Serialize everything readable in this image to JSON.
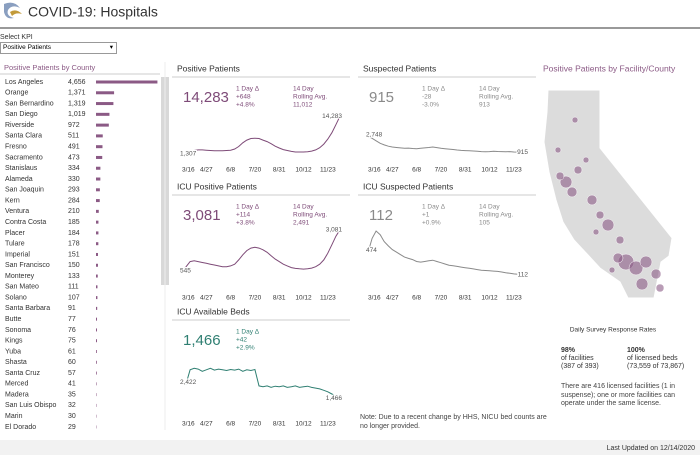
{
  "header": {
    "title": "COVID-19: Hospitals"
  },
  "kpi_select": {
    "label": "Select KPI",
    "value": "Positive Patients"
  },
  "chart_data": [
    {
      "type": "bar",
      "orientation": "horizontal",
      "title": "Positive Patients by County",
      "color": "#8b5a85",
      "xlim": [
        0,
        4700
      ],
      "categories": [
        "Los Angeles",
        "Orange",
        "San Bernardino",
        "San Diego",
        "Riverside",
        "Santa Clara",
        "Fresno",
        "Sacramento",
        "Stanislaus",
        "Alameda",
        "San Joaquin",
        "Kern",
        "Ventura",
        "Contra Costa",
        "Placer",
        "Tulare",
        "Imperial",
        "San Francisco",
        "Monterey",
        "San Mateo",
        "Solano",
        "Santa Barbara",
        "Butte",
        "Sonoma",
        "Kings",
        "Yuba",
        "Shasta",
        "Santa Cruz",
        "Merced",
        "Madera",
        "San Luis Obispo",
        "Marin",
        "El Dorado"
      ],
      "values": [
        4656,
        1371,
        1319,
        1019,
        972,
        511,
        491,
        473,
        334,
        330,
        293,
        284,
        210,
        185,
        184,
        178,
        151,
        150,
        133,
        111,
        107,
        91,
        77,
        76,
        75,
        61,
        60,
        57,
        41,
        35,
        32,
        30,
        29
      ],
      "value_labels": [
        "4,656",
        "1,371",
        "1,319",
        "1,019",
        "972",
        "511",
        "491",
        "473",
        "334",
        "330",
        "293",
        "284",
        "210",
        "185",
        "184",
        "178",
        "151",
        "150",
        "133",
        "111",
        "107",
        "91",
        "77",
        "76",
        "75",
        "61",
        "60",
        "57",
        "41",
        "35",
        "32",
        "30",
        "29"
      ]
    },
    {
      "type": "line",
      "title": "Positive Patients",
      "color": "#7e4b78",
      "ylim": [
        0,
        15000
      ],
      "kpi": {
        "value": "14,283",
        "day_label": "1 Day Δ",
        "day_change": "+648",
        "day_pct": "+4.8%",
        "avg_label_1": "14 Day",
        "avg_label_2": "Rolling Avg.",
        "avg_value": "11,012"
      },
      "categories": [
        "3/16",
        null,
        null,
        null,
        null,
        null,
        "4/27",
        null,
        null,
        null,
        null,
        null,
        "6/8",
        null,
        null,
        null,
        null,
        null,
        "7/20",
        null,
        null,
        null,
        null,
        null,
        "8/31",
        null,
        null,
        null,
        null,
        null,
        "10/12",
        null,
        null,
        null,
        null,
        null,
        "11/23",
        null,
        null,
        null
      ],
      "values": [
        1307,
        1900,
        2600,
        3100,
        3300,
        3300,
        3200,
        3100,
        3000,
        3000,
        3000,
        3100,
        3200,
        3600,
        4400,
        5600,
        6500,
        7000,
        7100,
        7000,
        6500,
        6000,
        5300,
        4500,
        3900,
        3400,
        3100,
        2800,
        2600,
        2600,
        2600,
        2700,
        2900,
        3300,
        4000,
        5200,
        6800,
        8900,
        11500,
        14283
      ],
      "value_labels": [
        "1,307",
        null,
        null,
        null,
        null,
        null,
        null,
        null,
        null,
        null,
        null,
        null,
        null,
        null,
        null,
        null,
        null,
        null,
        null,
        null,
        null,
        null,
        null,
        null,
        null,
        null,
        null,
        null,
        null,
        null,
        null,
        null,
        null,
        null,
        null,
        null,
        null,
        null,
        null,
        "14,283"
      ]
    },
    {
      "type": "line",
      "title": "Suspected Patients",
      "color": "#8a8a8a",
      "ylim": [
        0,
        5500
      ],
      "kpi": {
        "value": "915",
        "day_label": "1 Day Δ",
        "day_change": "-28",
        "day_pct": "-3.0%",
        "avg_label_1": "14 Day",
        "avg_label_2": "Rolling Avg.",
        "avg_value": "913"
      },
      "categories": [
        "3/16",
        null,
        null,
        null,
        null,
        null,
        "4/27",
        null,
        null,
        null,
        null,
        null,
        "6/8",
        null,
        null,
        null,
        null,
        null,
        "7/20",
        null,
        null,
        null,
        null,
        null,
        "8/31",
        null,
        null,
        null,
        null,
        null,
        "10/12",
        null,
        null,
        null,
        null,
        null,
        "11/23",
        null,
        null,
        null
      ],
      "values": [
        2748,
        2600,
        2300,
        2000,
        1800,
        1650,
        1550,
        1500,
        1450,
        1400,
        1420,
        1380,
        1350,
        1400,
        1450,
        1500,
        1550,
        1480,
        1400,
        1350,
        1300,
        1250,
        1200,
        1150,
        1120,
        1100,
        1080,
        1050,
        1000,
        980,
        1000,
        1050,
        1020,
        1000,
        980,
        1000,
        960,
        950,
        930,
        915
      ],
      "value_labels": [
        "2,748",
        null,
        null,
        null,
        null,
        null,
        null,
        null,
        null,
        null,
        null,
        null,
        null,
        null,
        null,
        null,
        null,
        null,
        null,
        null,
        null,
        null,
        null,
        null,
        null,
        null,
        null,
        null,
        null,
        null,
        null,
        null,
        null,
        null,
        null,
        null,
        null,
        null,
        null,
        "915"
      ]
    },
    {
      "type": "line",
      "title": "ICU Positive Patients",
      "color": "#7e4b78",
      "ylim": [
        0,
        3300
      ],
      "kpi": {
        "value": "3,081",
        "day_label": "1 Day Δ",
        "day_change": "+114",
        "day_pct": "+3.8%",
        "avg_label_1": "14 Day",
        "avg_label_2": "Rolling Avg.",
        "avg_value": "2,491"
      },
      "categories": [
        "3/16",
        null,
        null,
        null,
        null,
        null,
        "4/27",
        null,
        null,
        null,
        null,
        null,
        "6/8",
        null,
        null,
        null,
        null,
        null,
        "7/20",
        null,
        null,
        null,
        null,
        null,
        "8/31",
        null,
        null,
        null,
        null,
        null,
        "10/12",
        null,
        null,
        null,
        null,
        null,
        "11/23",
        null,
        null,
        null
      ],
      "values": [
        545,
        900,
        1200,
        1250,
        1200,
        1150,
        1100,
        1050,
        1000,
        950,
        900,
        900,
        950,
        1050,
        1300,
        1600,
        1850,
        2000,
        2050,
        2000,
        1900,
        1750,
        1550,
        1350,
        1200,
        1050,
        950,
        850,
        800,
        780,
        760,
        780,
        820,
        900,
        1050,
        1300,
        1700,
        2200,
        2700,
        3081
      ],
      "value_labels": [
        "545",
        null,
        null,
        null,
        null,
        null,
        null,
        null,
        null,
        null,
        null,
        null,
        null,
        null,
        null,
        null,
        null,
        null,
        null,
        null,
        null,
        null,
        null,
        null,
        null,
        null,
        null,
        null,
        null,
        null,
        null,
        null,
        null,
        null,
        null,
        null,
        null,
        null,
        null,
        "3,081"
      ]
    },
    {
      "type": "line",
      "title": "ICU Suspected Patients",
      "color": "#8a8a8a",
      "ylim": [
        0,
        900
      ],
      "kpi": {
        "value": "112",
        "day_label": "1 Day Δ",
        "day_change": "+1",
        "day_pct": "+0.9%",
        "avg_label_1": "14 Day",
        "avg_label_2": "Rolling Avg.",
        "avg_value": "105"
      },
      "categories": [
        "3/16",
        null,
        null,
        null,
        null,
        null,
        "4/27",
        null,
        null,
        null,
        null,
        null,
        "6/8",
        null,
        null,
        null,
        null,
        null,
        "7/20",
        null,
        null,
        null,
        null,
        null,
        "8/31",
        null,
        null,
        null,
        null,
        null,
        "10/12",
        null,
        null,
        null,
        null,
        null,
        "11/23",
        null,
        null,
        null
      ],
      "values": [
        474,
        700,
        820,
        760,
        650,
        580,
        520,
        480,
        440,
        400,
        380,
        360,
        330,
        320,
        330,
        340,
        350,
        330,
        310,
        290,
        270,
        260,
        250,
        240,
        230,
        220,
        210,
        200,
        190,
        185,
        180,
        175,
        170,
        160,
        150,
        140,
        130,
        125,
        118,
        112
      ],
      "value_labels": [
        "474",
        null,
        null,
        null,
        null,
        null,
        null,
        null,
        null,
        null,
        null,
        null,
        null,
        null,
        null,
        null,
        null,
        null,
        null,
        null,
        null,
        null,
        null,
        null,
        null,
        null,
        null,
        null,
        null,
        null,
        null,
        null,
        null,
        null,
        null,
        null,
        null,
        null,
        null,
        "112"
      ]
    },
    {
      "type": "line",
      "title": "ICU Available Beds",
      "color": "#2f7f72",
      "ylim": [
        1000,
        4000
      ],
      "kpi": {
        "value": "1,466",
        "day_label": "1 Day Δ",
        "day_change": "+42",
        "day_pct": "+2.9%"
      },
      "categories": [
        "3/16",
        null,
        null,
        null,
        null,
        null,
        "4/27",
        null,
        null,
        null,
        null,
        null,
        "6/8",
        null,
        null,
        null,
        null,
        null,
        "7/20",
        null,
        null,
        null,
        null,
        null,
        "8/31",
        null,
        null,
        null,
        null,
        null,
        "10/12",
        null,
        null,
        null,
        null,
        null,
        "11/23",
        null,
        null,
        null
      ],
      "values": [
        2422,
        2450,
        3400,
        3500,
        3450,
        3300,
        3400,
        3500,
        3380,
        3450,
        3400,
        3350,
        3420,
        3380,
        3450,
        3300,
        3400,
        3350,
        3420,
        2300,
        2250,
        2300,
        2200,
        2280,
        2250,
        2300,
        2200,
        2250,
        2300,
        2200,
        2250,
        2280,
        2200,
        2150,
        2100,
        2000,
        1900,
        1750,
        1600,
        1466
      ],
      "value_labels": [
        "2,422",
        null,
        null,
        null,
        null,
        null,
        null,
        null,
        null,
        null,
        null,
        null,
        null,
        null,
        null,
        null,
        null,
        null,
        null,
        null,
        null,
        null,
        null,
        null,
        null,
        null,
        null,
        null,
        null,
        null,
        null,
        null,
        null,
        null,
        null,
        null,
        null,
        null,
        null,
        "1,466"
      ]
    }
  ],
  "note": "Note: Due to a recent change by HHS, NICU bed counts are no longer provided.",
  "map": {
    "title": "Positive Patients by Facility/County"
  },
  "survey": {
    "title": "Daily Survey Response Rates",
    "facilities_pct": "98%",
    "facilities_label": "of facilities",
    "facilities_count": "(387 of 393)",
    "beds_pct": "100%",
    "beds_label": "of licensed beds",
    "beds_count": "(73,559 of 73,867)",
    "note": "There are 416 licensed facilities (1 in suspense); one or more facilities can operate under the same license."
  },
  "footer": {
    "updated": "Last Updated on 12/14/2020"
  }
}
